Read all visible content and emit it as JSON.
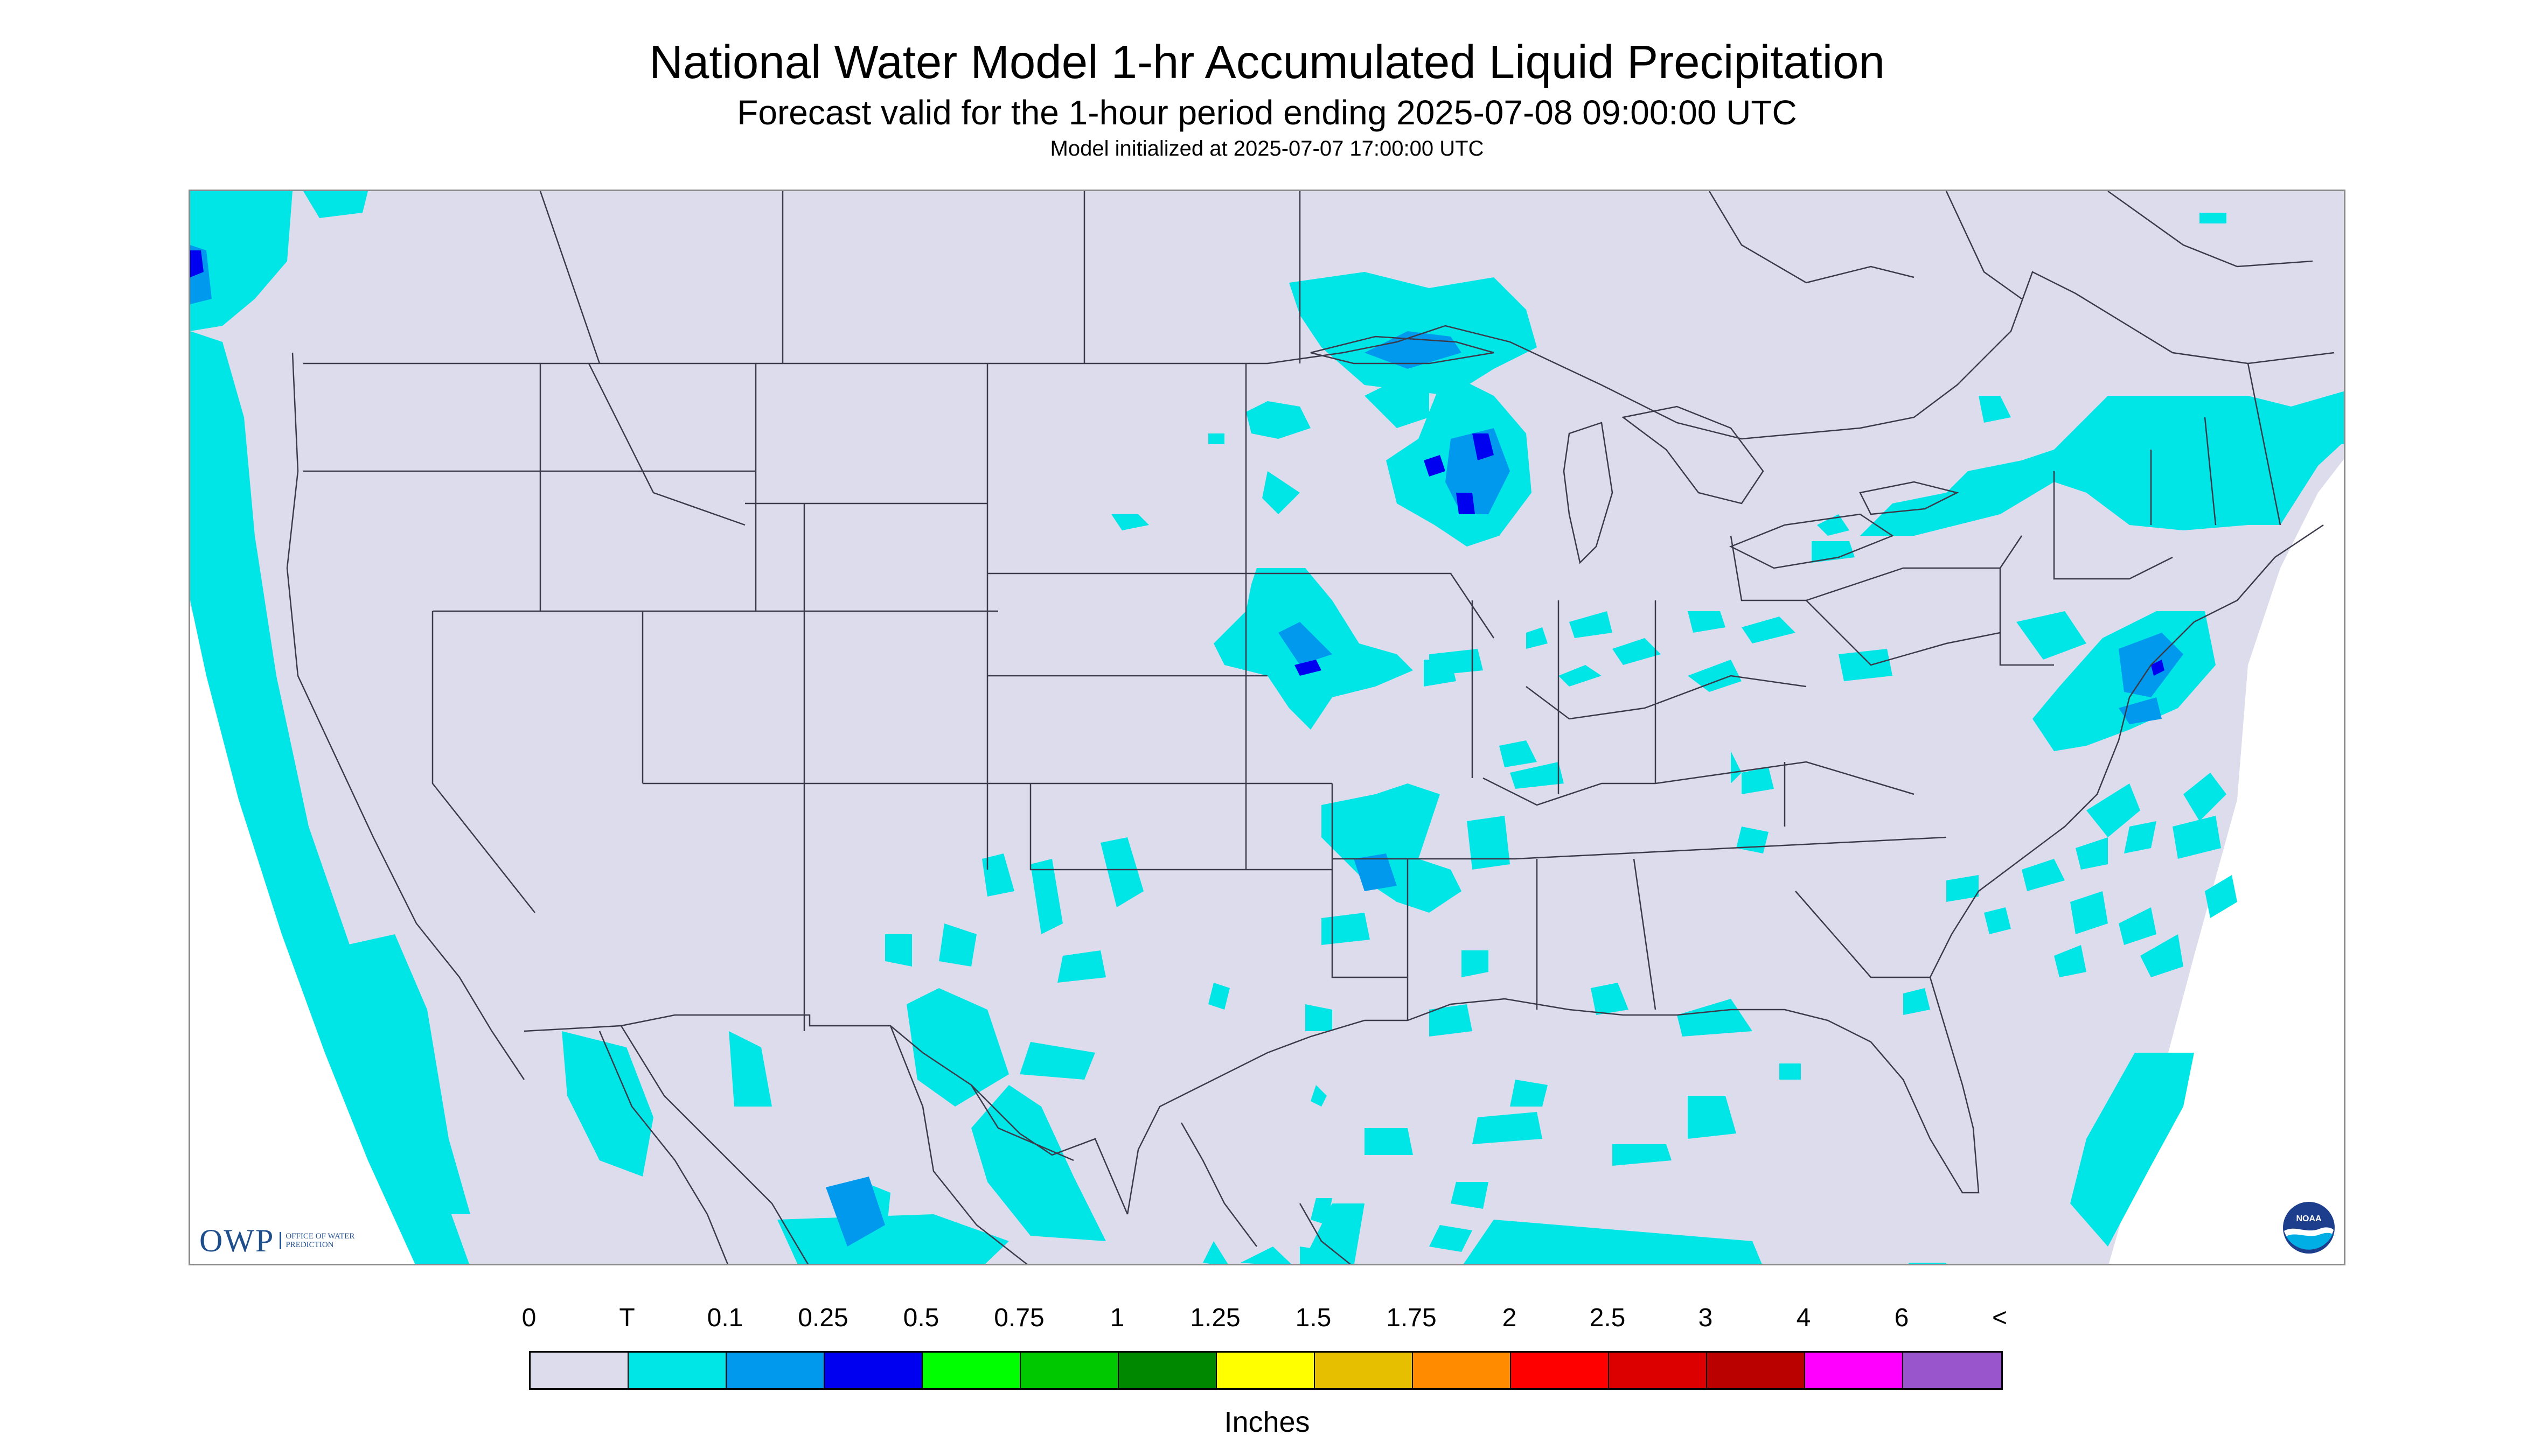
{
  "header": {
    "title": "National Water Model 1-hr Accumulated Liquid Precipitation",
    "subtitle": "Forecast valid for the 1-hour period ending 2025-07-08 09:00:00 UTC",
    "init_line": "Model initialized at 2025-07-07 17:00:00 UTC"
  },
  "logos": {
    "owp_letters": "OWP",
    "owp_name": "OFFICE OF WATER PREDICTION",
    "noaa_text": "NOAA"
  },
  "legend": {
    "labels": [
      "0",
      "T",
      "0.1",
      "0.25",
      "0.5",
      "0.75",
      "1",
      "1.25",
      "1.5",
      "1.75",
      "2",
      "2.5",
      "3",
      "4",
      "6",
      "<"
    ],
    "colors": [
      "#dcdcec",
      "#00e5e5",
      "#0099ee",
      "#0000f0",
      "#00ff00",
      "#00c800",
      "#008800",
      "#ffff00",
      "#e6bf00",
      "#ff8c00",
      "#ff0000",
      "#dd0000",
      "#bb0000",
      "#ff00ff",
      "#9955cc"
    ],
    "units": "Inches"
  },
  "colors": {
    "no_precip": "#dcdcec",
    "trace": "#00e5e5",
    "light": "#0099ee",
    "moderate": "#0000f0",
    "boundary_lines": "#3a3a4a"
  }
}
